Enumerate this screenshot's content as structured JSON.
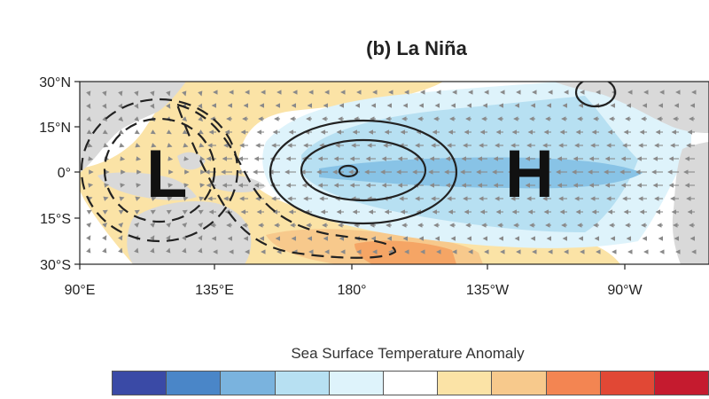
{
  "title": "(b) La Niña",
  "map": {
    "lat_labels": [
      "30°N",
      "15°N",
      "0°",
      "15°S",
      "30°S"
    ],
    "lon_labels": [
      "90°E",
      "135°E",
      "180°",
      "135°W",
      "90°W"
    ],
    "pressure_labels": {
      "low": "L",
      "high": "H"
    },
    "colors": {
      "land": "#d9d9d9",
      "ocean": "#ffffff",
      "cool_light": "#def3fb",
      "cool_mid": "#b7e0f2",
      "cool_deep": "#88c3e6",
      "warm_light": "#fbe3a6",
      "warm_mid": "#f7c98c",
      "warm_deep": "#f5a565",
      "contour": "#222222",
      "vector": "#8a8a8a"
    }
  },
  "legend": {
    "title": "Sea Surface Temperature Anomaly",
    "colors": [
      "#3a4aa6",
      "#4a86c8",
      "#7ab3de",
      "#b7e0f2",
      "#def3fb",
      "#ffffff",
      "#fbe3a6",
      "#f7c98c",
      "#f38552",
      "#e14835",
      "#c51b2f"
    ]
  }
}
